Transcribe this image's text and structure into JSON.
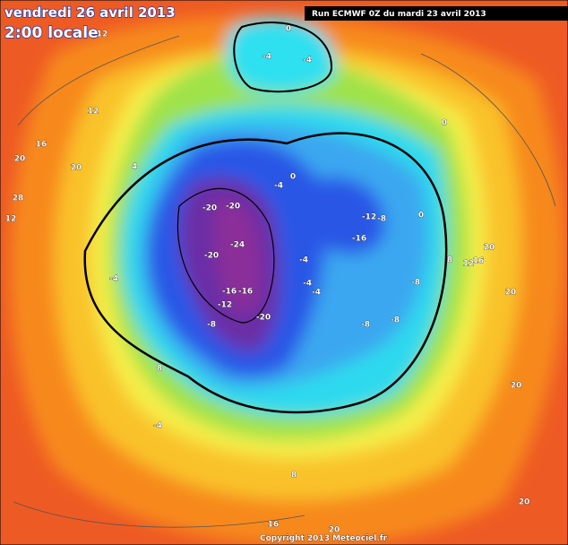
{
  "header": {
    "date": "vendredi 26 avril 2013",
    "time": "2:00 locale",
    "run": "Run ECMWF 0Z du mardi 23 avril 2013"
  },
  "footer": {
    "copyright": "Copyright 2013 Meteociel.fr"
  },
  "contour_labels": [
    12,
    0,
    -4,
    -4,
    12,
    16,
    20,
    20,
    28,
    12,
    0,
    4,
    0,
    -4,
    -20,
    -20,
    -24,
    -20,
    -12,
    -8,
    -16,
    0,
    8,
    12,
    16,
    20,
    20,
    -4,
    -4,
    -4,
    -4,
    -8,
    -16,
    -16,
    -12,
    -8,
    -20,
    -8,
    -8,
    8,
    20,
    -4,
    8,
    16,
    20,
    20
  ]
}
